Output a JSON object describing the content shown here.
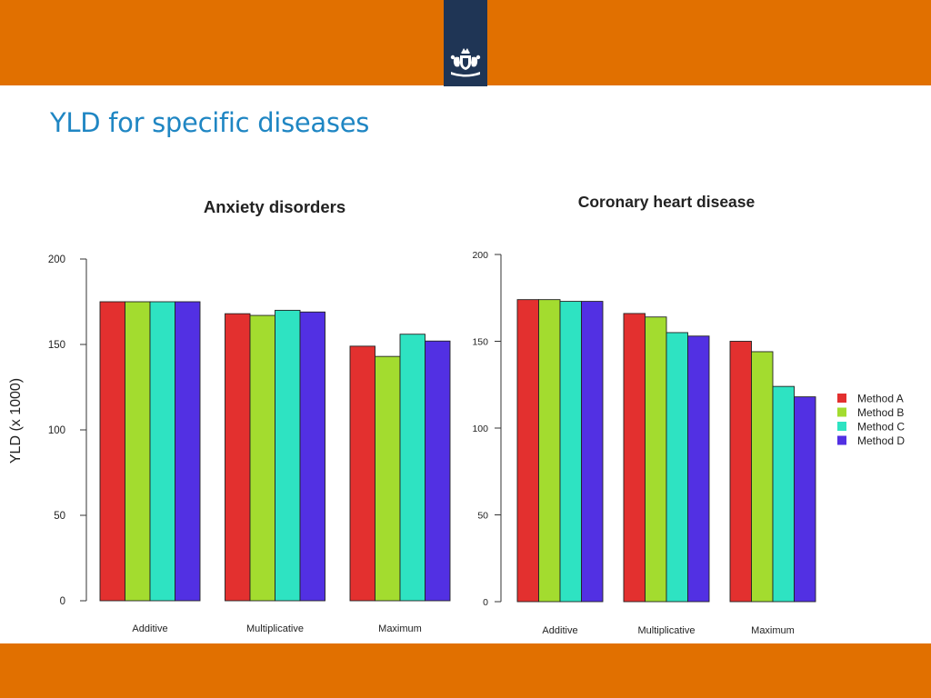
{
  "slide": {
    "title": "YLD for specific diseases",
    "logo": "dutch-government-coat-of-arms",
    "colors": {
      "banner": "#E17000",
      "logo_block": "#1F3555",
      "title": "#1F86C3"
    }
  },
  "chart_data": [
    {
      "type": "bar",
      "title": "Anxiety disorders",
      "ylabel": "YLD (x 1000)",
      "xlabel": "",
      "ylim": [
        0,
        200
      ],
      "yticks": [
        0,
        50,
        100,
        150,
        200
      ],
      "categories": [
        "Additive",
        "Multiplicative",
        "Maximum"
      ],
      "series": [
        {
          "name": "Method A",
          "color": "#E3302F",
          "values": [
            175,
            168,
            149
          ]
        },
        {
          "name": "Method B",
          "color": "#A3DC2F",
          "values": [
            175,
            167,
            143
          ]
        },
        {
          "name": "Method C",
          "color": "#2EE3C2",
          "values": [
            175,
            170,
            156
          ]
        },
        {
          "name": "Method D",
          "color": "#5230E3",
          "values": [
            175,
            169,
            152
          ]
        }
      ]
    },
    {
      "type": "bar",
      "title": "Coronary heart disease",
      "ylabel": "",
      "xlabel": "",
      "ylim": [
        0,
        200
      ],
      "yticks": [
        0,
        50,
        100,
        150,
        200
      ],
      "categories": [
        "Additive",
        "Multiplicative",
        "Maximum"
      ],
      "legend_position": "right",
      "series": [
        {
          "name": "Method A",
          "color": "#E3302F",
          "values": [
            174,
            166,
            150
          ]
        },
        {
          "name": "Method B",
          "color": "#A3DC2F",
          "values": [
            174,
            164,
            144
          ]
        },
        {
          "name": "Method C",
          "color": "#2EE3C2",
          "values": [
            173,
            155,
            124
          ]
        },
        {
          "name": "Method D",
          "color": "#5230E3",
          "values": [
            173,
            153,
            118
          ]
        }
      ]
    }
  ]
}
